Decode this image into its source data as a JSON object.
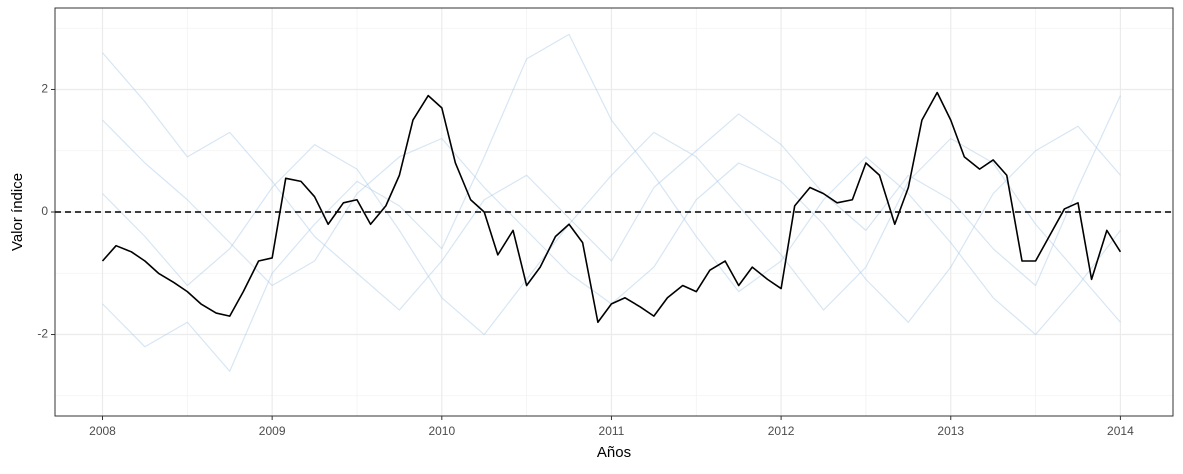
{
  "chart_data": {
    "type": "line",
    "x_label": "Años",
    "y_label": "Valor índice",
    "xlim": [
      2007.72,
      2014.31
    ],
    "ylim": [
      -3.33,
      3.33
    ],
    "xticks": [
      2008,
      2009,
      2010,
      2011,
      2012,
      2013,
      2014
    ],
    "yticks": [
      -2,
      0,
      2
    ],
    "x_minor_ticks": [
      2008.5,
      2009.5,
      2010.5,
      2011.5,
      2012.5,
      2013.5
    ],
    "y_minor_ticks": [
      -3,
      -1,
      1,
      3
    ],
    "grid": true,
    "hline": 0,
    "background_series": [
      {
        "color": "#a6c8e6",
        "opacity": 0.45,
        "x": [
          2008,
          2008.25,
          2008.5,
          2008.75,
          2009,
          2009.25,
          2009.5,
          2009.75,
          2010,
          2010.25,
          2010.5,
          2010.75,
          2011,
          2011.25,
          2011.5,
          2011.75,
          2012,
          2012.25,
          2012.5,
          2012.75,
          2013,
          2013.25,
          2013.5,
          2013.75,
          2014
        ],
        "values": [
          1.5,
          0.8,
          0.2,
          -0.5,
          -1.2,
          -0.8,
          0.3,
          0.9,
          1.2,
          0.4,
          -0.3,
          -1.0,
          -1.5,
          -0.9,
          0.2,
          0.8,
          0.5,
          -0.2,
          -1.1,
          -1.8,
          -0.9,
          0.3,
          1.0,
          1.4,
          0.6
        ]
      },
      {
        "color": "#a6c8e6",
        "opacity": 0.45,
        "x": [
          2008,
          2008.25,
          2008.5,
          2008.75,
          2009,
          2009.25,
          2009.5,
          2009.75,
          2010,
          2010.25,
          2010.5,
          2010.75,
          2011,
          2011.25,
          2011.5,
          2011.75,
          2012,
          2012.25,
          2012.5,
          2012.75,
          2013,
          2013.25,
          2013.5,
          2013.75,
          2014
        ],
        "values": [
          -1.5,
          -2.2,
          -1.8,
          -2.6,
          -1.0,
          -0.2,
          0.5,
          0.1,
          -0.6,
          0.9,
          2.5,
          2.9,
          1.5,
          0.6,
          -0.4,
          -1.3,
          -0.8,
          0.2,
          0.9,
          0.3,
          -0.5,
          -1.4,
          -2.0,
          -1.2,
          -0.3
        ]
      },
      {
        "color": "#a6c8e6",
        "opacity": 0.45,
        "x": [
          2008,
          2008.25,
          2008.5,
          2008.75,
          2009,
          2009.25,
          2009.5,
          2009.75,
          2010,
          2010.25,
          2010.5,
          2010.75,
          2011,
          2011.25,
          2011.5,
          2011.75,
          2012,
          2012.25,
          2012.5,
          2012.75,
          2013,
          2013.25,
          2013.5,
          2013.75,
          2014
        ],
        "values": [
          0.3,
          -0.4,
          -1.2,
          -0.6,
          0.4,
          1.1,
          0.7,
          -0.3,
          -1.4,
          -2.0,
          -1.1,
          -0.2,
          0.6,
          1.3,
          0.9,
          0.1,
          -0.7,
          -1.6,
          -0.9,
          0.5,
          1.2,
          0.8,
          -0.2,
          -1.0,
          -1.8
        ]
      },
      {
        "color": "#a6c8e6",
        "opacity": 0.45,
        "x": [
          2008,
          2008.25,
          2008.5,
          2008.75,
          2009,
          2009.25,
          2009.5,
          2009.75,
          2010,
          2010.25,
          2010.5,
          2010.75,
          2011,
          2011.25,
          2011.5,
          2011.75,
          2012,
          2012.25,
          2012.5,
          2012.75,
          2013,
          2013.25,
          2013.5,
          2013.75,
          2014
        ],
        "values": [
          2.6,
          1.8,
          0.9,
          1.3,
          0.5,
          -0.4,
          -1.0,
          -1.6,
          -0.8,
          0.2,
          0.6,
          -0.1,
          -0.8,
          0.4,
          1.0,
          1.6,
          1.1,
          0.3,
          -0.3,
          0.6,
          0.2,
          -0.6,
          -1.2,
          0.4,
          1.9
        ]
      }
    ],
    "series": [
      {
        "color": "#000000",
        "x": [
          2008,
          2008.08,
          2008.17,
          2008.25,
          2008.33,
          2008.42,
          2008.5,
          2008.58,
          2008.67,
          2008.75,
          2008.83,
          2008.92,
          2009,
          2009.08,
          2009.17,
          2009.25,
          2009.33,
          2009.42,
          2009.5,
          2009.58,
          2009.67,
          2009.75,
          2009.83,
          2009.92,
          2010,
          2010.08,
          2010.17,
          2010.25,
          2010.33,
          2010.42,
          2010.5,
          2010.58,
          2010.67,
          2010.75,
          2010.83,
          2010.92,
          2011,
          2011.08,
          2011.17,
          2011.25,
          2011.33,
          2011.42,
          2011.5,
          2011.58,
          2011.67,
          2011.75,
          2011.83,
          2011.92,
          2012,
          2012.08,
          2012.17,
          2012.25,
          2012.33,
          2012.42,
          2012.5,
          2012.58,
          2012.67,
          2012.75,
          2012.83,
          2012.92,
          2013,
          2013.08,
          2013.17,
          2013.25,
          2013.33,
          2013.42,
          2013.5,
          2013.58,
          2013.67,
          2013.75,
          2013.83,
          2013.92,
          2014
        ],
        "values": [
          -0.8,
          -0.55,
          -0.65,
          -0.8,
          -1.0,
          -1.15,
          -1.3,
          -1.5,
          -1.65,
          -1.7,
          -1.3,
          -0.8,
          -0.75,
          0.55,
          0.5,
          0.25,
          -0.2,
          0.15,
          0.2,
          -0.2,
          0.1,
          0.6,
          1.5,
          1.9,
          1.7,
          0.8,
          0.2,
          0.0,
          -0.7,
          -0.3,
          -1.2,
          -0.9,
          -0.4,
          -0.2,
          -0.5,
          -1.8,
          -1.5,
          -1.4,
          -1.55,
          -1.7,
          -1.4,
          -1.2,
          -1.3,
          -0.95,
          -0.8,
          -1.2,
          -0.9,
          -1.1,
          -1.25,
          0.1,
          0.4,
          0.3,
          0.15,
          0.2,
          0.8,
          0.6,
          -0.2,
          0.4,
          1.5,
          1.95,
          1.5,
          0.9,
          0.7,
          0.85,
          0.6,
          -0.8,
          -0.8,
          -0.4,
          0.05,
          0.15,
          -1.1,
          -0.3,
          -0.65
        ]
      }
    ]
  }
}
